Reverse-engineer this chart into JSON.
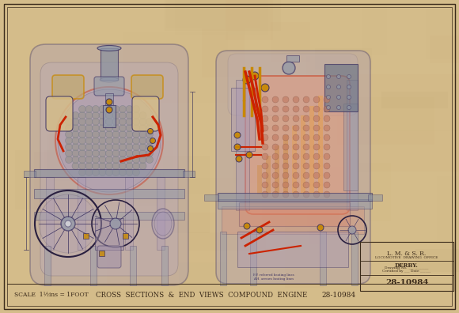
{
  "bg_outer": "#b8a070",
  "paper_color": "#d4bc8a",
  "paper_color2": "#c8aa78",
  "border_color": "#3a2a1a",
  "line_color": "#3a3060",
  "line_color2": "#4a4060",
  "title_bottom": "CROSS  SECTIONS  &  END  VIEWS  COMPOUND  ENGINE",
  "scale_text": "SCALE  1½ins = 1FOOT",
  "drawing_number": "28-10984",
  "lmsr_text": "L. M. & S. R.",
  "works_text": "LOCOMOTIVE  DRAWING  OFFICE",
  "derby_text": "DERBY.",
  "red_color": "#cc2200",
  "red2": "#aa1100",
  "gold_color": "#c88800",
  "gold2": "#d49000",
  "pink_fill": "#e09880",
  "pink2": "#d88870",
  "lavender": "#a898b8",
  "lavender2": "#b8aac8",
  "gray1": "#8890a0",
  "gray2": "#9098a8",
  "gray3": "#707888",
  "mauve": "#a090a8",
  "dark_line": "#2a2040",
  "orange_fill": "#d09050",
  "tan": "#c0a870"
}
